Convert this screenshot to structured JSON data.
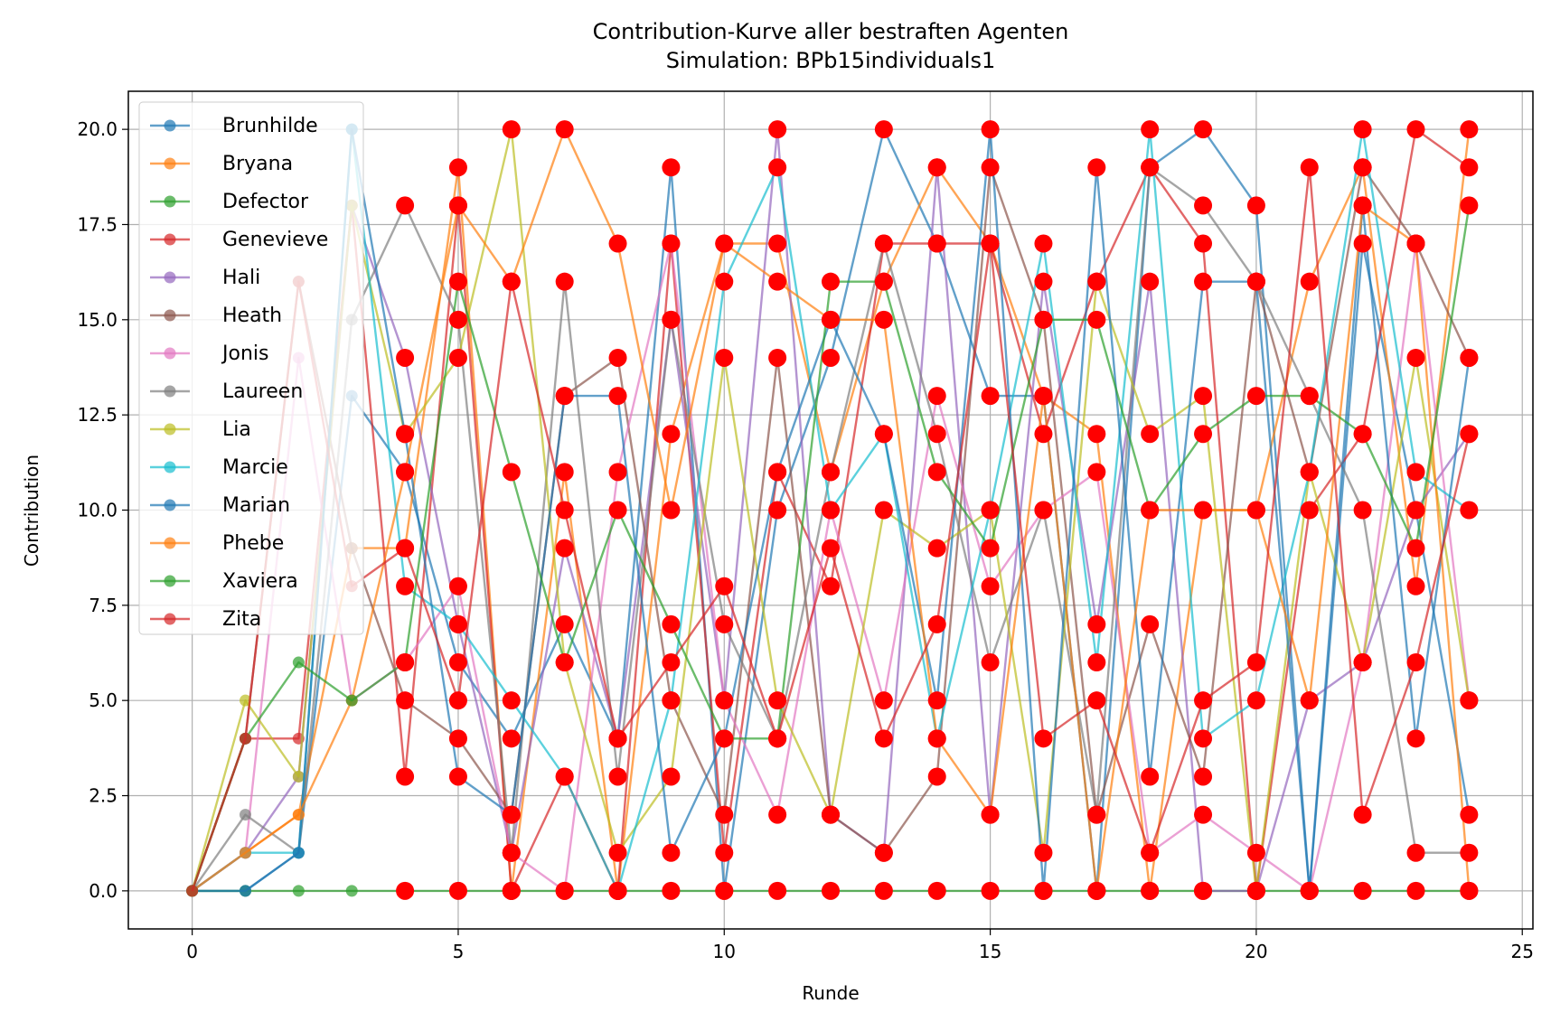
{
  "chart_data": {
    "type": "line",
    "title": "Contribution-Kurve aller bestraften Agenten",
    "subtitle": "Simulation: BPb15individuals1",
    "xlabel": "Runde",
    "ylabel": "Contribution",
    "xlim": [
      -1.2,
      25.2
    ],
    "ylim": [
      -1,
      21
    ],
    "xticks": [
      0,
      5,
      10,
      15,
      20,
      25
    ],
    "yticks": [
      0.0,
      2.5,
      5.0,
      7.5,
      10.0,
      12.5,
      15.0,
      17.5,
      20.0
    ],
    "ytick_labels": [
      "0.0",
      "2.5",
      "5.0",
      "7.5",
      "10.0",
      "12.5",
      "15.0",
      "17.5",
      "20.0"
    ],
    "grid": true,
    "legend_position": "upper-left",
    "punished_marker_color": "#ff0000",
    "x": [
      0,
      1,
      2,
      3,
      4,
      5,
      6,
      7,
      8,
      9,
      10,
      11,
      12,
      13,
      14,
      15,
      16,
      17,
      18,
      19,
      20,
      21,
      22,
      23,
      24
    ],
    "series": [
      {
        "name": "Brunhilde",
        "color": "#1f77b4",
        "values": [
          0,
          0,
          1,
          13,
          11,
          6,
          4,
          7,
          4,
          19,
          0,
          10,
          14,
          20,
          17,
          13,
          13,
          0,
          19,
          20,
          18,
          0,
          17,
          10,
          2
        ]
      },
      {
        "name": "Bryana",
        "color": "#ff7f0e",
        "values": [
          0,
          1,
          2,
          9,
          9,
          19,
          0,
          11,
          0,
          12,
          17,
          17,
          11,
          16,
          19,
          17,
          13,
          12,
          0,
          10,
          10,
          16,
          19,
          8,
          20
        ]
      },
      {
        "name": "Defector",
        "color": "#2ca02c",
        "values": [
          0,
          0,
          0,
          0,
          0,
          0,
          0,
          0,
          0,
          0,
          0,
          0,
          0,
          0,
          0,
          0,
          0,
          0,
          0,
          0,
          0,
          0,
          0,
          0,
          0
        ]
      },
      {
        "name": "Genevieve",
        "color": "#d62728",
        "values": [
          0,
          4,
          4,
          18,
          3,
          18,
          0,
          3,
          0,
          17,
          1,
          11,
          8,
          17,
          17,
          17,
          12,
          16,
          19,
          17,
          0,
          10,
          12,
          20,
          19
        ]
      },
      {
        "name": "Hali",
        "color": "#9467bd",
        "values": [
          0,
          1,
          3,
          18,
          14,
          7,
          1,
          9,
          4,
          15,
          5,
          20,
          2,
          1,
          19,
          2,
          16,
          7,
          16,
          0,
          0,
          5,
          6,
          10,
          12
        ]
      },
      {
        "name": "Heath",
        "color": "#8c564b",
        "values": [
          0,
          4,
          16,
          9,
          5,
          4,
          2,
          13,
          14,
          5,
          2,
          14,
          2,
          1,
          3,
          19,
          15,
          2,
          7,
          3,
          16,
          11,
          19,
          17,
          14
        ]
      },
      {
        "name": "Jonis",
        "color": "#e377c2",
        "values": [
          0,
          1,
          14,
          5,
          6,
          8,
          1,
          0,
          11,
          17,
          5,
          2,
          10,
          5,
          13,
          8,
          10,
          11,
          1,
          2,
          1,
          0,
          6,
          17,
          5
        ]
      },
      {
        "name": "Laureen",
        "color": "#7f7f7f",
        "values": [
          0,
          2,
          1,
          15,
          18,
          15,
          1,
          16,
          3,
          15,
          7,
          4,
          11,
          17,
          12,
          6,
          10,
          2,
          19,
          18,
          16,
          13,
          10,
          1,
          1
        ]
      },
      {
        "name": "Lia",
        "color": "#bcbd22",
        "values": [
          0,
          5,
          3,
          18,
          12,
          14,
          20,
          6,
          1,
          3,
          14,
          5,
          2,
          10,
          9,
          10,
          1,
          16,
          12,
          13,
          0,
          11,
          6,
          14,
          5
        ]
      },
      {
        "name": "Marcie",
        "color": "#17becf",
        "values": [
          0,
          1,
          1,
          20,
          8,
          7,
          5,
          3,
          0,
          5,
          16,
          19,
          10,
          12,
          4,
          10,
          17,
          6,
          20,
          4,
          5,
          11,
          20,
          11,
          10
        ]
      },
      {
        "name": "Marian",
        "color": "#1f77b4",
        "values": [
          0,
          0,
          1,
          20,
          12,
          3,
          2,
          13,
          13,
          1,
          4,
          11,
          15,
          12,
          5,
          20,
          0,
          19,
          3,
          16,
          16,
          0,
          18,
          4,
          14
        ]
      },
      {
        "name": "Phebe",
        "color": "#ff7f0e",
        "values": [
          0,
          1,
          2,
          5,
          11,
          18,
          16,
          20,
          17,
          10,
          17,
          16,
          15,
          15,
          4,
          2,
          13,
          0,
          10,
          10,
          10,
          5,
          18,
          17,
          0
        ]
      },
      {
        "name": "Xaviera",
        "color": "#2ca02c",
        "values": [
          0,
          4,
          6,
          5,
          6,
          16,
          11,
          6,
          10,
          7,
          4,
          4,
          16,
          16,
          11,
          9,
          15,
          15,
          10,
          12,
          13,
          13,
          12,
          9,
          18
        ]
      },
      {
        "name": "Zita",
        "color": "#d62728",
        "values": [
          0,
          4,
          16,
          8,
          9,
          5,
          16,
          10,
          4,
          6,
          8,
          4,
          9,
          4,
          7,
          17,
          4,
          5,
          1,
          5,
          6,
          19,
          2,
          6,
          12
        ]
      }
    ]
  }
}
